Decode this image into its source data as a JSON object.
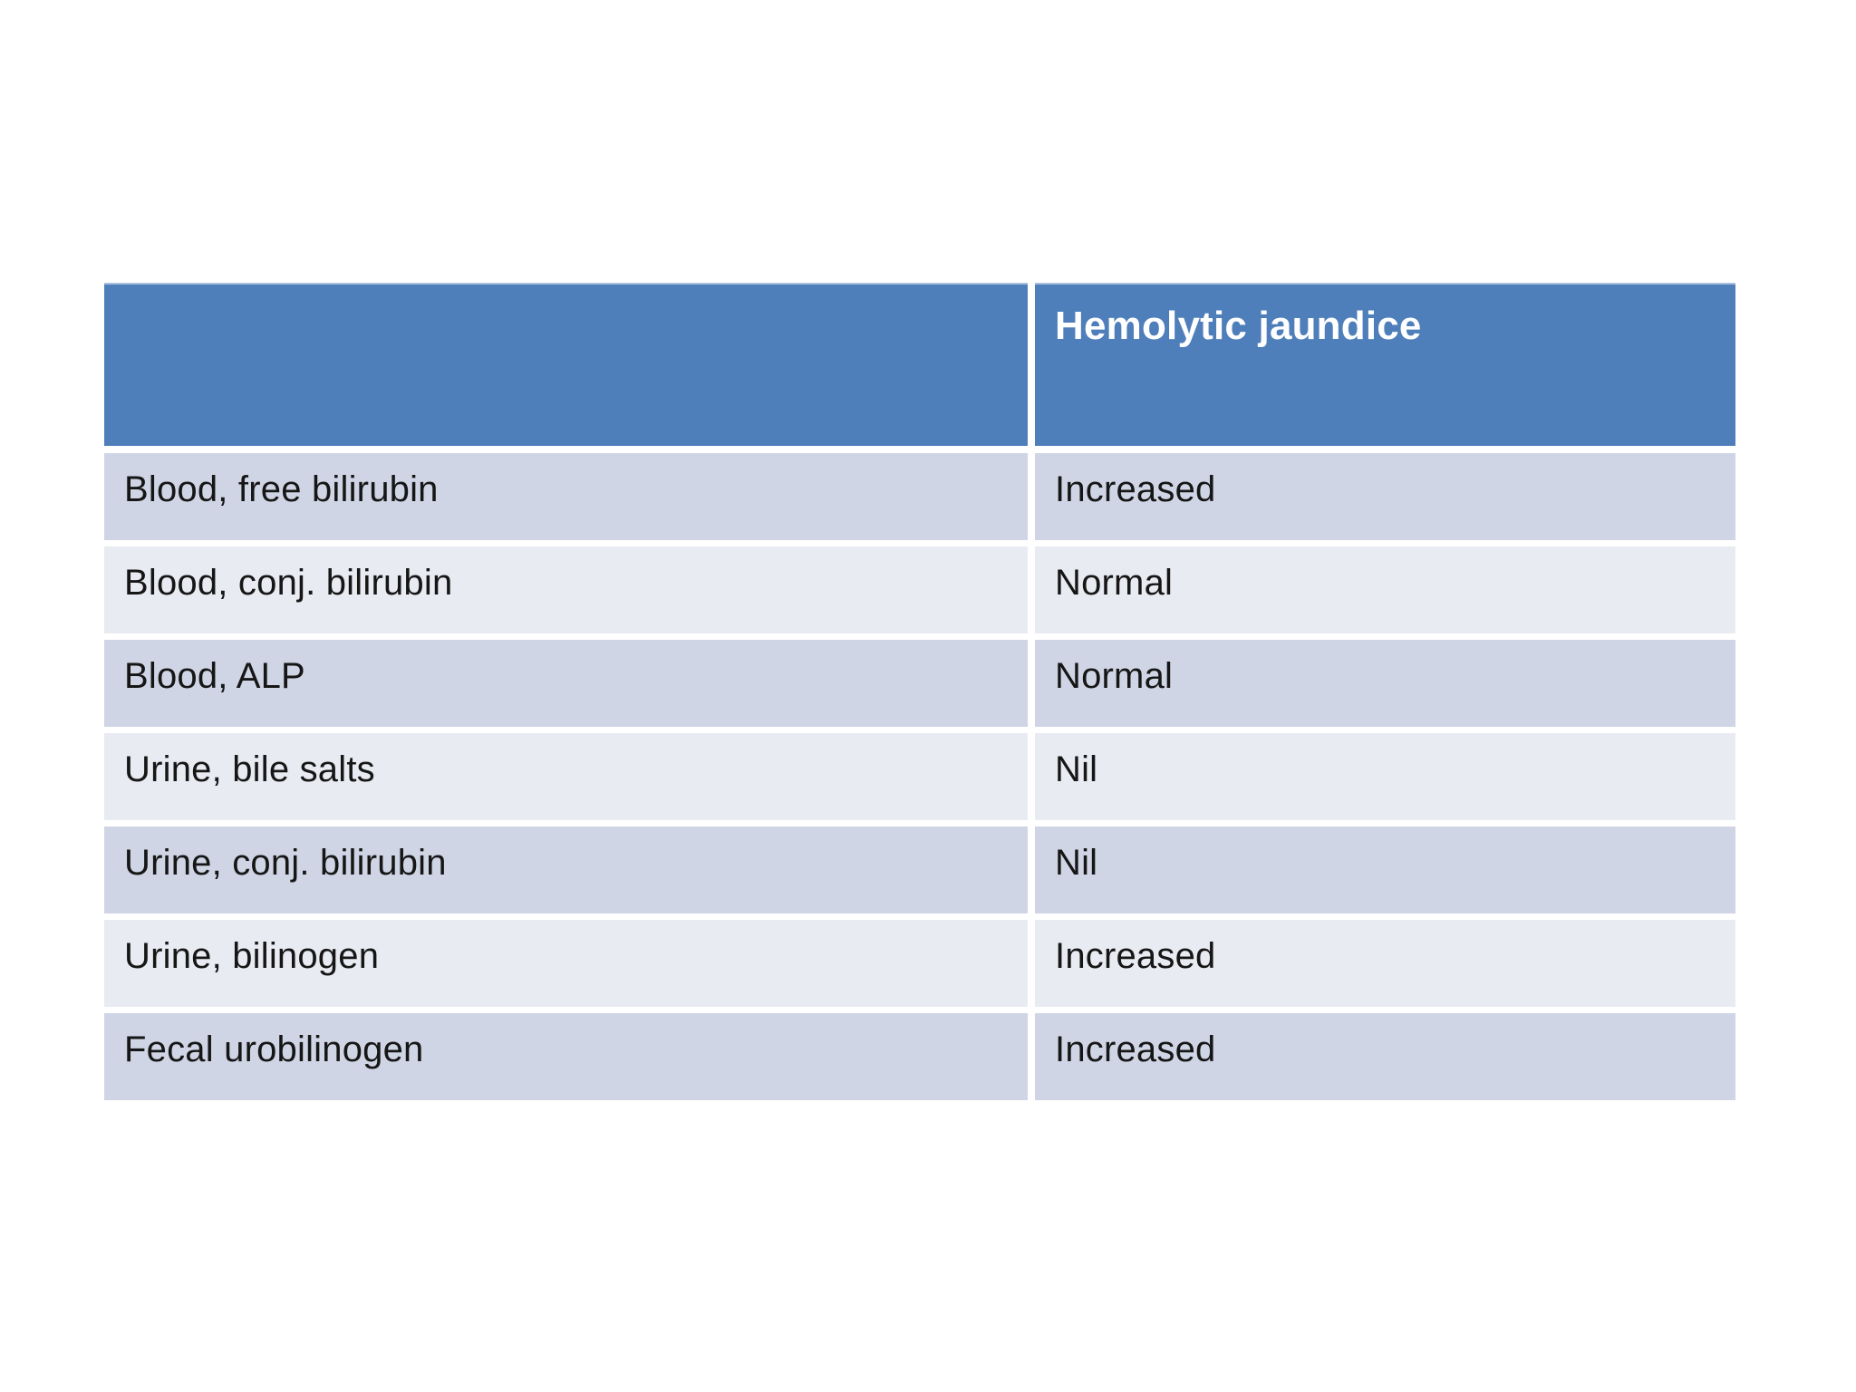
{
  "table": {
    "header": {
      "label_col": "",
      "value_col": "Hemolytic jaundice"
    },
    "rows": [
      {
        "label": "Blood, free bilirubin",
        "value": "Increased"
      },
      {
        "label": "Blood, conj. bilirubin",
        "value": "Normal"
      },
      {
        "label": "Blood, ALP",
        "value": "Normal"
      },
      {
        "label": "Urine, bile salts",
        "value": "Nil"
      },
      {
        "label": "Urine, conj. bilirubin",
        "value": "Nil"
      },
      {
        "label": "Urine, bilinogen",
        "value": "Increased"
      },
      {
        "label": "Fecal urobilinogen",
        "value": "Increased"
      }
    ]
  },
  "colors": {
    "page_bg": "#ffffff",
    "header_bg": "#4e7fbb",
    "header_border": "#aabfdd",
    "header_text": "#ffffff",
    "row_dark": "#cfd5e4",
    "row_light": "#e9ebf2",
    "body_text": "#161616"
  }
}
